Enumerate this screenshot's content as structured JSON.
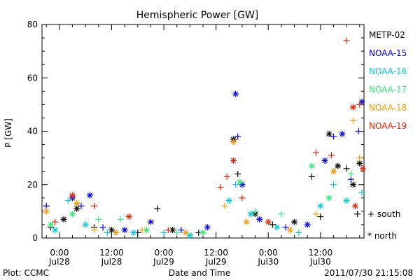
{
  "chart_data": {
    "type": "scatter",
    "title": "Hemispheric Power [GW]",
    "ylabel": "P [GW]",
    "xlabel": "Date and Time",
    "ylim": [
      0,
      80
    ],
    "yticks": [
      "0",
      "20",
      "40",
      "60",
      "80"
    ],
    "xlim": [
      "2011-07-27 20:00",
      "2011-07-30 22:00"
    ],
    "xticks": [
      {
        "time": "2011-07-28 00:00",
        "line1": "0:00",
        "line2": "Jul28"
      },
      {
        "time": "2011-07-28 12:00",
        "line1": "12:00",
        "line2": "Jul28"
      },
      {
        "time": "2011-07-29 00:00",
        "line1": "0:00",
        "line2": "Jul29"
      },
      {
        "time": "2011-07-29 12:00",
        "line1": "12:00",
        "line2": "Jul29"
      },
      {
        "time": "2011-07-30 00:00",
        "line1": "0:00",
        "line2": "Jul30"
      },
      {
        "time": "2011-07-30 12:00",
        "line1": "12:00",
        "line2": "Jul30"
      }
    ],
    "markers": {
      "south": "+ south",
      "north": "* north"
    },
    "series": [
      {
        "name": "METP-02",
        "color": "#000000",
        "points": [
          {
            "t": "2011-07-27 22:00",
            "y": 4,
            "m": "+"
          },
          {
            "t": "2011-07-28 01:00",
            "y": 7,
            "m": "*"
          },
          {
            "t": "2011-07-28 04:00",
            "y": 11,
            "m": "*"
          },
          {
            "t": "2011-07-28 08:00",
            "y": 4,
            "m": "+"
          },
          {
            "t": "2011-07-28 12:00",
            "y": 3,
            "m": "*"
          },
          {
            "t": "2011-07-28 18:00",
            "y": 2,
            "m": "+"
          },
          {
            "t": "2011-07-28 22:30",
            "y": 11,
            "m": "+"
          },
          {
            "t": "2011-07-29 02:00",
            "y": 3,
            "m": "*"
          },
          {
            "t": "2011-07-29 08:00",
            "y": 2,
            "m": "+"
          },
          {
            "t": "2011-07-29 16:00",
            "y": 37,
            "m": "*"
          },
          {
            "t": "2011-07-29 17:00",
            "y": 24,
            "m": "+"
          },
          {
            "t": "2011-07-29 21:00",
            "y": 9,
            "m": "*"
          },
          {
            "t": "2011-07-30 01:00",
            "y": 5,
            "m": "+"
          },
          {
            "t": "2011-07-30 06:00",
            "y": 6,
            "m": "*"
          },
          {
            "t": "2011-07-30 10:00",
            "y": 23,
            "m": "+"
          },
          {
            "t": "2011-07-30 12:00",
            "y": 8,
            "m": "+"
          },
          {
            "t": "2011-07-30 14:00",
            "y": 39,
            "m": "*"
          },
          {
            "t": "2011-07-30 16:00",
            "y": 27,
            "m": "*"
          },
          {
            "t": "2011-07-30 18:00",
            "y": 26,
            "m": "+"
          },
          {
            "t": "2011-07-30 19:30",
            "y": 20,
            "m": "*"
          },
          {
            "t": "2011-07-30 20:30",
            "y": 9,
            "m": "+"
          },
          {
            "t": "2011-07-30 21:00",
            "y": 28,
            "m": "*"
          }
        ]
      },
      {
        "name": "NOAA-15",
        "color": "#0000ee",
        "points": [
          {
            "t": "2011-07-27 21:00",
            "y": 12,
            "m": "+"
          },
          {
            "t": "2011-07-28 03:00",
            "y": 15,
            "m": "*"
          },
          {
            "t": "2011-07-28 05:00",
            "y": 12,
            "m": "+"
          },
          {
            "t": "2011-07-28 07:00",
            "y": 16,
            "m": "*"
          },
          {
            "t": "2011-07-28 10:00",
            "y": 4,
            "m": "+"
          },
          {
            "t": "2011-07-28 15:00",
            "y": 3,
            "m": "*"
          },
          {
            "t": "2011-07-28 21:00",
            "y": 6,
            "m": "*"
          },
          {
            "t": "2011-07-29 04:00",
            "y": 3,
            "m": "+"
          },
          {
            "t": "2011-07-29 10:00",
            "y": 4,
            "m": "*"
          },
          {
            "t": "2011-07-29 16:30",
            "y": 54,
            "m": "*"
          },
          {
            "t": "2011-07-29 17:00",
            "y": 38,
            "m": "+"
          },
          {
            "t": "2011-07-29 18:00",
            "y": 20,
            "m": "*"
          },
          {
            "t": "2011-07-29 22:00",
            "y": 7,
            "m": "*"
          },
          {
            "t": "2011-07-30 04:00",
            "y": 4,
            "m": "+"
          },
          {
            "t": "2011-07-30 09:00",
            "y": 5,
            "m": "*"
          },
          {
            "t": "2011-07-30 13:00",
            "y": 29,
            "m": "*"
          },
          {
            "t": "2011-07-30 15:00",
            "y": 38,
            "m": "+"
          },
          {
            "t": "2011-07-30 17:00",
            "y": 39,
            "m": "*"
          },
          {
            "t": "2011-07-30 19:00",
            "y": 22,
            "m": "+"
          },
          {
            "t": "2011-07-30 20:45",
            "y": 40,
            "m": "+"
          },
          {
            "t": "2011-07-30 21:30",
            "y": 51,
            "m": "*"
          }
        ]
      },
      {
        "name": "NOAA-16",
        "color": "#00ccdd",
        "points": [
          {
            "t": "2011-07-27 23:00",
            "y": 3,
            "m": "*"
          },
          {
            "t": "2011-07-28 02:00",
            "y": 14,
            "m": "+"
          },
          {
            "t": "2011-07-28 06:00",
            "y": 5,
            "m": "*"
          },
          {
            "t": "2011-07-28 11:00",
            "y": 2,
            "m": "+"
          },
          {
            "t": "2011-07-28 17:00",
            "y": 2,
            "m": "*"
          },
          {
            "t": "2011-07-29 00:00",
            "y": 2,
            "m": "+"
          },
          {
            "t": "2011-07-29 06:00",
            "y": 1,
            "m": "*"
          },
          {
            "t": "2011-07-29 15:00",
            "y": 14,
            "m": "*"
          },
          {
            "t": "2011-07-29 16:30",
            "y": 20,
            "m": "+"
          },
          {
            "t": "2011-07-29 20:00",
            "y": 9,
            "m": "*"
          },
          {
            "t": "2011-07-30 02:00",
            "y": 4,
            "m": "*"
          },
          {
            "t": "2011-07-30 07:00",
            "y": 2,
            "m": "+"
          },
          {
            "t": "2011-07-30 12:00",
            "y": 12,
            "m": "*"
          },
          {
            "t": "2011-07-30 15:00",
            "y": 20,
            "m": "+"
          },
          {
            "t": "2011-07-30 18:00",
            "y": 14,
            "m": "*"
          },
          {
            "t": "2011-07-30 21:30",
            "y": 17,
            "m": "+"
          }
        ]
      },
      {
        "name": "NOAA-17",
        "color": "#33ee77",
        "points": [
          {
            "t": "2011-07-27 22:00",
            "y": 5,
            "m": "*"
          },
          {
            "t": "2011-07-28 03:00",
            "y": 9,
            "m": "*"
          },
          {
            "t": "2011-07-28 09:00",
            "y": 7,
            "m": "+"
          },
          {
            "t": "2011-07-28 14:00",
            "y": 7,
            "m": "+"
          },
          {
            "t": "2011-07-28 20:00",
            "y": 3,
            "m": "*"
          },
          {
            "t": "2011-07-29 03:00",
            "y": 2,
            "m": "+"
          },
          {
            "t": "2011-07-29 09:00",
            "y": 2,
            "m": "*"
          },
          {
            "t": "2011-07-29 17:30",
            "y": 21,
            "m": "*"
          },
          {
            "t": "2011-07-29 21:00",
            "y": 10,
            "m": "+"
          },
          {
            "t": "2011-07-30 03:00",
            "y": 9,
            "m": "+"
          },
          {
            "t": "2011-07-30 10:00",
            "y": 27,
            "m": "*"
          },
          {
            "t": "2011-07-30 14:00",
            "y": 15,
            "m": "*"
          },
          {
            "t": "2011-07-30 19:00",
            "y": 24,
            "m": "+"
          }
        ]
      },
      {
        "name": "NOAA-18",
        "color": "#ff9900",
        "points": [
          {
            "t": "2011-07-27 21:00",
            "y": 10,
            "m": "*"
          },
          {
            "t": "2011-07-28 04:00",
            "y": 13,
            "m": "*"
          },
          {
            "t": "2011-07-28 08:00",
            "y": 3,
            "m": "+"
          },
          {
            "t": "2011-07-28 13:00",
            "y": 2,
            "m": "*"
          },
          {
            "t": "2011-07-28 19:00",
            "y": 3,
            "m": "+"
          },
          {
            "t": "2011-07-29 05:00",
            "y": 2,
            "m": "*"
          },
          {
            "t": "2011-07-29 14:00",
            "y": 12,
            "m": "+"
          },
          {
            "t": "2011-07-29 16:00",
            "y": 36,
            "m": "*"
          },
          {
            "t": "2011-07-29 19:00",
            "y": 6,
            "m": "*"
          },
          {
            "t": "2011-07-30 05:00",
            "y": 3,
            "m": "*"
          },
          {
            "t": "2011-07-30 11:00",
            "y": 9,
            "m": "+"
          },
          {
            "t": "2011-07-30 15:00",
            "y": 25,
            "m": "*"
          },
          {
            "t": "2011-07-30 19:30",
            "y": 44,
            "m": "+"
          },
          {
            "t": "2011-07-30 21:00",
            "y": 30,
            "m": "+"
          }
        ]
      },
      {
        "name": "NOAA-19",
        "color": "#ee2200",
        "points": [
          {
            "t": "2011-07-27 23:00",
            "y": 6,
            "m": "+"
          },
          {
            "t": "2011-07-28 03:00",
            "y": 16,
            "m": "*"
          },
          {
            "t": "2011-07-28 08:00",
            "y": 12,
            "m": "+"
          },
          {
            "t": "2011-07-28 16:00",
            "y": 8,
            "m": "*"
          },
          {
            "t": "2011-07-29 01:00",
            "y": 3,
            "m": "+"
          },
          {
            "t": "2011-07-29 13:00",
            "y": 19,
            "m": "+"
          },
          {
            "t": "2011-07-29 14:30",
            "y": 23,
            "m": "+"
          },
          {
            "t": "2011-07-29 16:00",
            "y": 29,
            "m": "*"
          },
          {
            "t": "2011-07-29 18:00",
            "y": 15,
            "m": "+"
          },
          {
            "t": "2011-07-30 00:00",
            "y": 6,
            "m": "*"
          },
          {
            "t": "2011-07-30 11:00",
            "y": 32,
            "m": "+"
          },
          {
            "t": "2011-07-30 14:30",
            "y": 31,
            "m": "+"
          },
          {
            "t": "2011-07-30 18:00",
            "y": 74,
            "m": "+"
          },
          {
            "t": "2011-07-30 19:30",
            "y": 49,
            "m": "*"
          },
          {
            "t": "2011-07-30 20:00",
            "y": 12,
            "m": "*"
          },
          {
            "t": "2011-07-30 21:00",
            "y": 50,
            "m": "+"
          },
          {
            "t": "2011-07-30 21:45",
            "y": 26,
            "m": "*"
          }
        ]
      }
    ]
  },
  "footer": {
    "plot_credit": "Plot: CCMC",
    "timestamp": "2011/07/30 21:15:08"
  }
}
